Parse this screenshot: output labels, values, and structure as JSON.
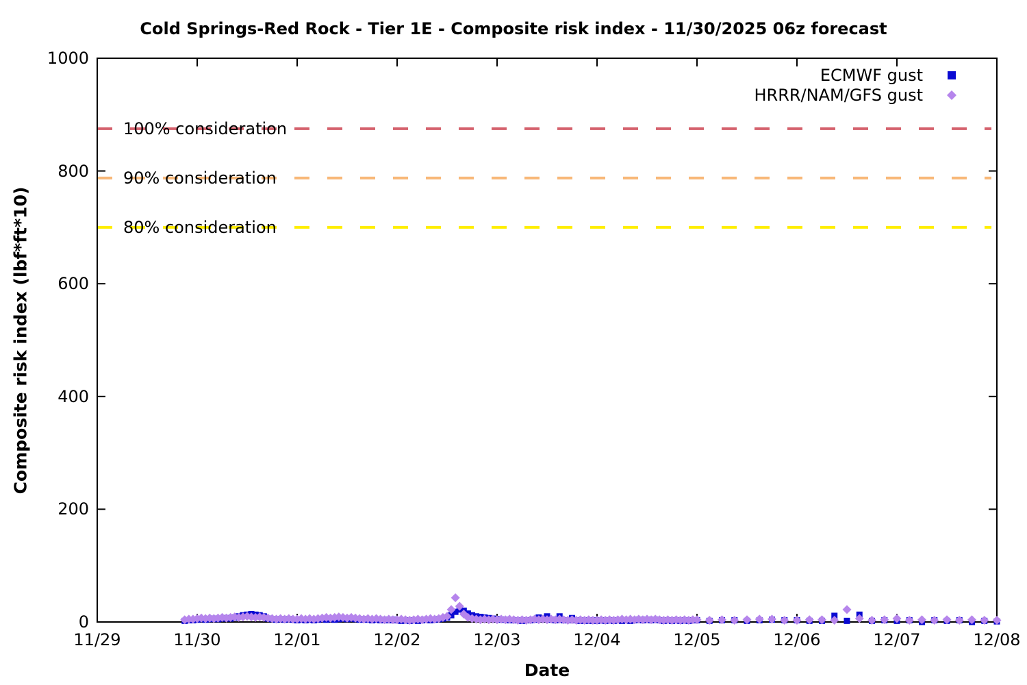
{
  "chart_data": {
    "type": "scatter",
    "title": "Cold Springs-Red Rock - Tier 1E - Composite risk index - 11/30/2025 06z forecast",
    "xlabel": "Date",
    "ylabel": "Composite risk index (lbf*ft*10)",
    "ylim": [
      0,
      1000
    ],
    "grid": false,
    "legend_position": "top-right-inside",
    "x_axis": {
      "unit": "hours since 11/29 00:00",
      "min_hours": 0,
      "max_hours": 216
    },
    "x_tick_labels": [
      "11/29",
      "11/30",
      "12/01",
      "12/02",
      "12/03",
      "12/04",
      "12/05",
      "12/06",
      "12/07",
      "12/08"
    ],
    "y_tick_labels": [
      "0",
      "200",
      "400",
      "600",
      "800",
      "1000"
    ],
    "thresholds": [
      {
        "label": "100% consideration",
        "value": 875,
        "color": "#d4606c"
      },
      {
        "label": "90% consideration",
        "value": 787.5,
        "color": "#f8b878"
      },
      {
        "label": "80% consideration",
        "value": 700,
        "color": "#ffee00"
      }
    ],
    "series": [
      {
        "name": "ECMWF gust",
        "marker": "square",
        "color": "#0a0ad2",
        "segments": [
          {
            "start_hour": 21,
            "step_hours": 1,
            "values": [
              2,
              3,
              3,
              4,
              5,
              4,
              5,
              6,
              5,
              6,
              7,
              6,
              8,
              10,
              12,
              13,
              14,
              13,
              12,
              10,
              6,
              5,
              4,
              5,
              4,
              5,
              4,
              3,
              4,
              3,
              4,
              3,
              4,
              5,
              4,
              5,
              4,
              5,
              6,
              5,
              6,
              5,
              4,
              5,
              4,
              3,
              4,
              3,
              4,
              3,
              4,
              3,
              2,
              3,
              2,
              3,
              2,
              3,
              4,
              3,
              4,
              5,
              6,
              8,
              12,
              18,
              22,
              20,
              15,
              12,
              10,
              9,
              8,
              7,
              6,
              5,
              4,
              4,
              3,
              3,
              3,
              2,
              3,
              3,
              4,
              8,
              5,
              10,
              4,
              3,
              10,
              3,
              3,
              7,
              3,
              2,
              3,
              2,
              3,
              2,
              3,
              2,
              3,
              2,
              3,
              2,
              3,
              2,
              3,
              4,
              3,
              4,
              3,
              4,
              3,
              2,
              3,
              2,
              3,
              2,
              3,
              2,
              3,
              3
            ]
          },
          {
            "start_hour": 147,
            "step_hours": 3,
            "values": [
              2,
              3,
              3,
              2,
              3,
              4,
              3,
              3,
              2,
              2,
              11,
              2,
              13,
              2,
              3,
              2,
              3,
              0,
              3,
              2,
              3,
              0,
              2,
              1
            ]
          }
        ]
      },
      {
        "name": "HRRR/NAM/GFS gust",
        "marker": "diamond",
        "color": "#b685ec",
        "segments": [
          {
            "start_hour": 21,
            "step_hours": 1,
            "values": [
              4,
              5,
              5,
              6,
              7,
              6,
              7,
              6,
              7,
              8,
              7,
              8,
              9,
              8,
              9,
              10,
              9,
              8,
              9,
              8,
              7,
              6,
              5,
              6,
              5,
              6,
              5,
              5,
              6,
              5,
              6,
              5,
              6,
              7,
              8,
              7,
              8,
              9,
              8,
              7,
              8,
              7,
              6,
              5,
              6,
              5,
              6,
              5,
              4,
              5,
              4,
              4,
              5,
              4,
              3,
              4,
              5,
              4,
              5,
              6,
              5,
              6,
              8,
              10,
              22,
              43,
              28,
              14,
              8,
              6,
              5,
              4,
              5,
              4,
              5,
              4,
              5,
              4,
              5,
              4,
              3,
              4,
              3,
              4,
              5,
              4,
              5,
              4,
              5,
              4,
              5,
              4,
              3,
              4,
              3,
              4,
              3,
              4,
              3,
              3,
              4,
              3,
              4,
              3,
              4,
              5,
              4,
              5,
              4,
              5,
              4,
              5,
              4,
              5,
              4,
              3,
              4,
              3,
              4,
              3,
              4,
              3,
              4,
              4
            ]
          },
          {
            "start_hour": 147,
            "step_hours": 3,
            "values": [
              3,
              4,
              3,
              4,
              5,
              5,
              3,
              3,
              4,
              4,
              3,
              22,
              6,
              3,
              4,
              6,
              3,
              4,
              3,
              4,
              3,
              4,
              3,
              3
            ]
          }
        ]
      }
    ]
  }
}
